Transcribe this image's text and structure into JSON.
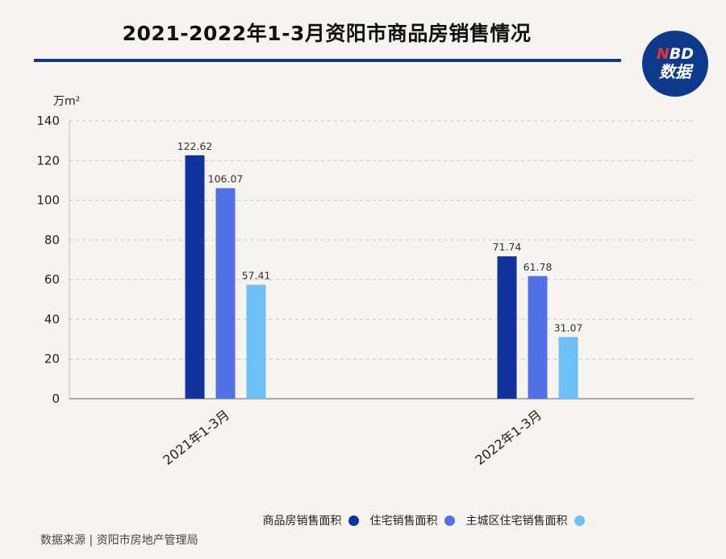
{
  "title": "2021-2022年1-3月资阳市商品房销售情况",
  "logo": {
    "line1_n": "N",
    "line1_rest": "BD",
    "line2": "数据"
  },
  "source": "数据来源 | 资阳市房地产管理局",
  "chart_data": {
    "type": "bar",
    "categories": [
      "2021年1-3月",
      "2022年1-3月"
    ],
    "series": [
      {
        "name": "商品房销售面积",
        "values": [
          122.62,
          71.74
        ],
        "color": "#11339e"
      },
      {
        "name": "住宅销售面积",
        "values": [
          106.07,
          61.78
        ],
        "color": "#5271e6"
      },
      {
        "name": "主城区住宅销售面积",
        "values": [
          57.41,
          31.07
        ],
        "color": "#6cc0f5"
      }
    ],
    "value_labels": [
      [
        "122.62",
        "71.74"
      ],
      [
        "106.07",
        "61.78"
      ],
      [
        "57.41",
        "31.07"
      ]
    ],
    "yunit": "万m²",
    "ylim": [
      0,
      140
    ],
    "yticks": [
      0,
      20,
      40,
      60,
      80,
      100,
      120,
      140
    ],
    "grid": true,
    "legend_position": "bottom"
  },
  "colors": {
    "title_rule": "#0d3a8c",
    "background": "#f7f4f0"
  }
}
